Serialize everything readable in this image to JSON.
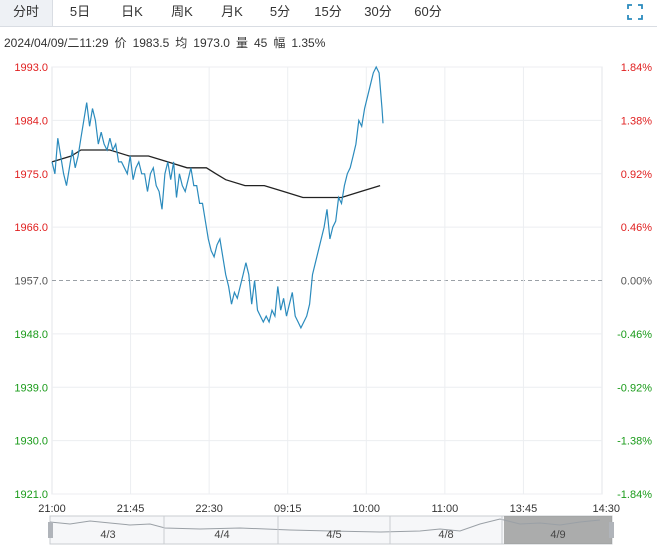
{
  "tabs": [
    {
      "label": "分时",
      "active": true
    },
    {
      "label": "5日",
      "active": false
    },
    {
      "label": "日K",
      "active": false
    },
    {
      "label": "周K",
      "active": false
    },
    {
      "label": "月K",
      "active": false
    },
    {
      "label": "5分",
      "active": false
    },
    {
      "label": "15分",
      "active": false
    },
    {
      "label": "30分",
      "active": false
    },
    {
      "label": "60分",
      "active": false
    }
  ],
  "fullscreen_icon": "fullscreen-icon",
  "info": {
    "datetime": "2024/04/09/二11:29",
    "price_label": "价",
    "price": "1983.5",
    "avg_label": "均",
    "avg": "1973.0",
    "vol_label": "量",
    "vol": "45",
    "amp_label": "幅",
    "amp": "1.35%"
  },
  "colors": {
    "price_line": "#2b8bbd",
    "avg_line": "#222222",
    "up": "#e02020",
    "down": "#1a9b1a",
    "flat": "#555555"
  },
  "chart_data": {
    "type": "line",
    "prev_close": 1957.0,
    "ylim": [
      1921.0,
      1993.0
    ],
    "y_ticks": [
      "1993.0",
      "1984.0",
      "1975.0",
      "1966.0",
      "1957.0",
      "1948.0",
      "1939.0",
      "1930.0",
      "1921.0"
    ],
    "pct_ticks": [
      "1.84%",
      "1.38%",
      "0.92%",
      "0.46%",
      "0.00%",
      "-0.46%",
      "-0.92%",
      "-1.38%",
      "-1.84%"
    ],
    "x_ticks": [
      "21:00",
      "21:45",
      "22:30",
      "09:15",
      "10:00",
      "11:00",
      "13:45",
      "14:30"
    ],
    "total_minutes": 570,
    "price_series": [
      [
        0,
        1977
      ],
      [
        3,
        1975
      ],
      [
        6,
        1981
      ],
      [
        9,
        1978
      ],
      [
        12,
        1975
      ],
      [
        15,
        1973
      ],
      [
        18,
        1976
      ],
      [
        21,
        1979
      ],
      [
        24,
        1976
      ],
      [
        27,
        1978
      ],
      [
        30,
        1981
      ],
      [
        33,
        1984
      ],
      [
        36,
        1987
      ],
      [
        39,
        1983
      ],
      [
        42,
        1986
      ],
      [
        45,
        1984
      ],
      [
        48,
        1980
      ],
      [
        51,
        1982
      ],
      [
        54,
        1980
      ],
      [
        57,
        1979
      ],
      [
        60,
        1981
      ],
      [
        63,
        1979
      ],
      [
        66,
        1980
      ],
      [
        69,
        1977
      ],
      [
        72,
        1977
      ],
      [
        75,
        1976
      ],
      [
        78,
        1975
      ],
      [
        81,
        1978
      ],
      [
        84,
        1974
      ],
      [
        87,
        1976
      ],
      [
        90,
        1977
      ],
      [
        93,
        1975
      ],
      [
        96,
        1975
      ],
      [
        99,
        1972
      ],
      [
        102,
        1975
      ],
      [
        105,
        1976
      ],
      [
        108,
        1973
      ],
      [
        111,
        1972
      ],
      [
        114,
        1969
      ],
      [
        117,
        1975
      ],
      [
        120,
        1977
      ],
      [
        123,
        1974
      ],
      [
        126,
        1977
      ],
      [
        129,
        1971
      ],
      [
        132,
        1975
      ],
      [
        135,
        1973
      ],
      [
        138,
        1972
      ],
      [
        141,
        1974
      ],
      [
        144,
        1976
      ],
      [
        147,
        1973
      ],
      [
        150,
        1973
      ],
      [
        153,
        1970
      ],
      [
        156,
        1970
      ],
      [
        159,
        1967
      ],
      [
        162,
        1964
      ],
      [
        165,
        1962
      ],
      [
        168,
        1961
      ],
      [
        171,
        1963
      ],
      [
        174,
        1964
      ],
      [
        177,
        1961
      ],
      [
        180,
        1958
      ],
      [
        183,
        1956
      ],
      [
        186,
        1953
      ],
      [
        189,
        1955
      ],
      [
        192,
        1954
      ],
      [
        195,
        1956
      ],
      [
        198,
        1958
      ],
      [
        201,
        1960
      ],
      [
        204,
        1958
      ],
      [
        207,
        1953
      ],
      [
        210,
        1957
      ],
      [
        213,
        1952
      ],
      [
        216,
        1951
      ],
      [
        219,
        1950
      ],
      [
        222,
        1951
      ],
      [
        225,
        1950
      ],
      [
        228,
        1952
      ],
      [
        231,
        1951
      ],
      [
        234,
        1956
      ],
      [
        237,
        1952
      ],
      [
        240,
        1954
      ],
      [
        243,
        1951
      ],
      [
        246,
        1953
      ],
      [
        249,
        1955
      ],
      [
        252,
        1951
      ],
      [
        255,
        1950
      ],
      [
        258,
        1949
      ],
      [
        261,
        1950
      ],
      [
        264,
        1951
      ],
      [
        267,
        1953
      ],
      [
        270,
        1958
      ],
      [
        273,
        1960
      ],
      [
        276,
        1962
      ],
      [
        279,
        1964
      ],
      [
        282,
        1966
      ],
      [
        285,
        1969
      ],
      [
        288,
        1964
      ],
      [
        291,
        1966
      ],
      [
        294,
        1967
      ],
      [
        297,
        1971
      ],
      [
        300,
        1970
      ],
      [
        303,
        1973
      ],
      [
        306,
        1975
      ],
      [
        309,
        1976
      ],
      [
        312,
        1978
      ],
      [
        315,
        1980
      ],
      [
        318,
        1984
      ],
      [
        321,
        1983
      ],
      [
        324,
        1986
      ],
      [
        327,
        1988
      ],
      [
        330,
        1990
      ],
      [
        333,
        1992
      ],
      [
        336,
        1993
      ],
      [
        339,
        1992
      ],
      [
        342,
        1986
      ],
      [
        343,
        1983.5
      ]
    ],
    "avg_series": [
      [
        0,
        1977
      ],
      [
        20,
        1978
      ],
      [
        30,
        1979
      ],
      [
        45,
        1979
      ],
      [
        60,
        1979
      ],
      [
        80,
        1978
      ],
      [
        100,
        1978
      ],
      [
        120,
        1977
      ],
      [
        140,
        1976
      ],
      [
        160,
        1976
      ],
      [
        170,
        1975
      ],
      [
        180,
        1974
      ],
      [
        200,
        1973
      ],
      [
        220,
        1973
      ],
      [
        240,
        1972
      ],
      [
        260,
        1971
      ],
      [
        280,
        1971
      ],
      [
        300,
        1971
      ],
      [
        320,
        1972
      ],
      [
        340,
        1973
      ]
    ],
    "nav_dates": [
      "4/3",
      "4/4",
      "4/5",
      "4/8",
      "4/9"
    ]
  }
}
